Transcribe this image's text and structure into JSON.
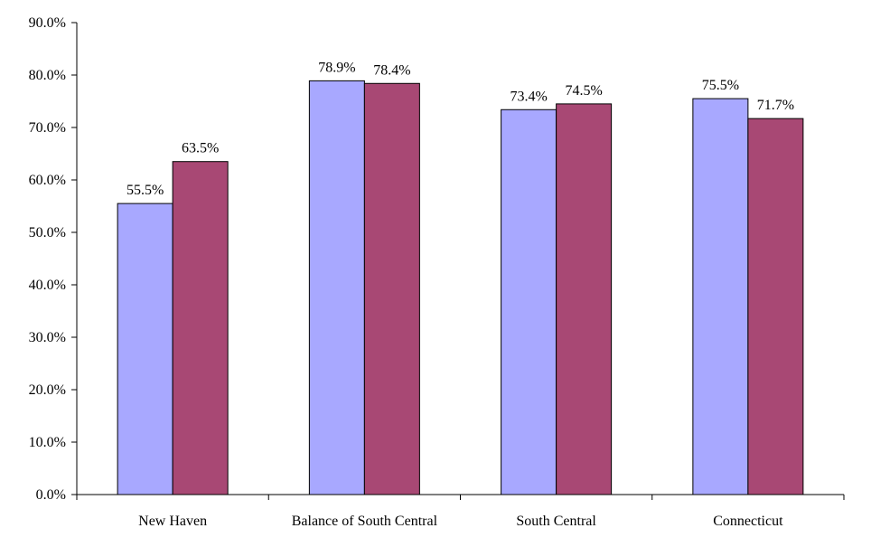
{
  "chart_data": {
    "type": "bar",
    "title": "",
    "xlabel": "",
    "ylabel": "",
    "categories": [
      "New Haven",
      "Balance of South Central",
      "South Central",
      "Connecticut"
    ],
    "series": [
      {
        "color": "#a8a8ff",
        "values": [
          55.5,
          78.9,
          73.4,
          75.5
        ],
        "labels": [
          "55.5%",
          "78.9%",
          "73.4%",
          "75.5%"
        ]
      },
      {
        "color": "#a84874",
        "values": [
          63.5,
          78.4,
          74.5,
          71.7
        ],
        "labels": [
          "63.5%",
          "78.4%",
          "74.5%",
          "71.7%"
        ]
      }
    ],
    "ylim": [
      0,
      90
    ],
    "yticks": [
      0,
      10,
      20,
      30,
      40,
      50,
      60,
      70,
      80,
      90
    ],
    "ytick_labels": [
      "0.0%",
      "10.0%",
      "20.0%",
      "30.0%",
      "40.0%",
      "50.0%",
      "60.0%",
      "70.0%",
      "80.0%",
      "90.0%"
    ],
    "grid": false,
    "legend": "none"
  }
}
